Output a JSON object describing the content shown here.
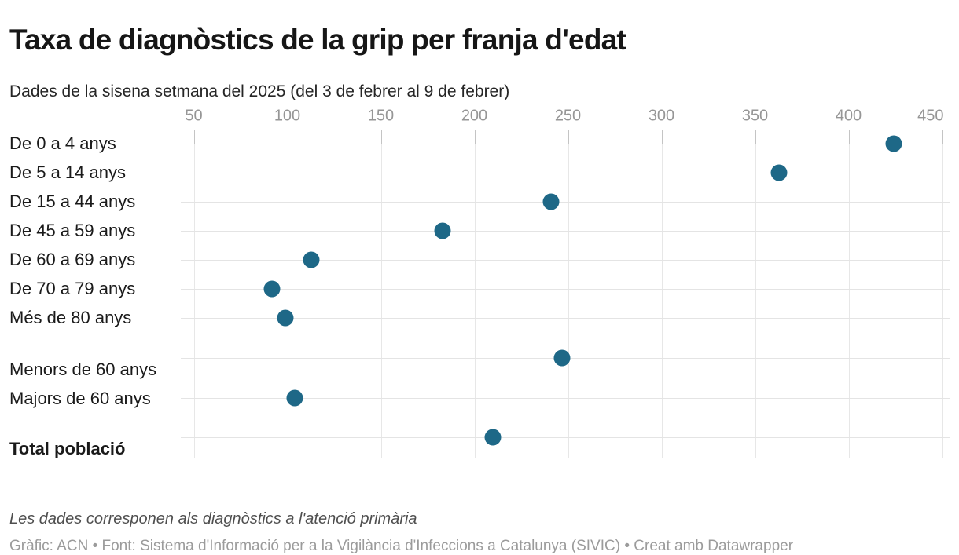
{
  "header": {
    "title": "Taxa de diagnòstics de la grip per franja d'edat",
    "subtitle": "Dades de la sisena setmana del 2025 (del 3 de febrer al 9 de febrer)"
  },
  "chart_data": {
    "type": "scatter",
    "variant": "dot-plot",
    "title": "Taxa de diagnòstics de la grip per franja d'edat",
    "subtitle": "Dades de la sisena setmana del 2025 (del 3 de febrer al 9 de febrer)",
    "x_axis": {
      "position": "top",
      "ticks": [
        50,
        100,
        150,
        200,
        250,
        300,
        350,
        400,
        450
      ],
      "range": [
        43,
        455
      ]
    },
    "rows": [
      {
        "label": "De 0 a 4 anys",
        "value": 424,
        "bold": false,
        "group": 0
      },
      {
        "label": "De 5 a 14 anys",
        "value": 363,
        "bold": false,
        "group": 0
      },
      {
        "label": "De 15 a 44 anys",
        "value": 241,
        "bold": false,
        "group": 0
      },
      {
        "label": "De 45 a 59 anys",
        "value": 183,
        "bold": false,
        "group": 0
      },
      {
        "label": "De 60 a 69 anys",
        "value": 113,
        "bold": false,
        "group": 0
      },
      {
        "label": "De 70 a 79 anys",
        "value": 92,
        "bold": false,
        "group": 0
      },
      {
        "label": "Més de 80 anys",
        "value": 99,
        "bold": false,
        "group": 0
      },
      {
        "label": "Menors de 60 anys",
        "value": 247,
        "bold": false,
        "group": 1
      },
      {
        "label": "Majors de 60 anys",
        "value": 104,
        "bold": false,
        "group": 1
      },
      {
        "label": "Total població",
        "value": 210,
        "bold": true,
        "group": 2
      }
    ],
    "grid": true,
    "legend": "none",
    "dot_color": "#1e6887"
  },
  "footer": {
    "note": "Les dades corresponen als diagnòstics a l'atenció primària",
    "credits": "Gràfic: ACN • Font: Sistema d'Informació per a la Vigilància d'Infeccions a Catalunya (SIVIC) • Creat amb Datawrapper"
  },
  "colors": {
    "dot": "#1e6887",
    "gridline": "#e4e4e4",
    "tick": "#c4c4c4",
    "axis_label": "#969696",
    "category_label": "#1a1a1a",
    "title": "#161616",
    "note": "#4f4f4f",
    "credits": "#9b9b9b"
  }
}
